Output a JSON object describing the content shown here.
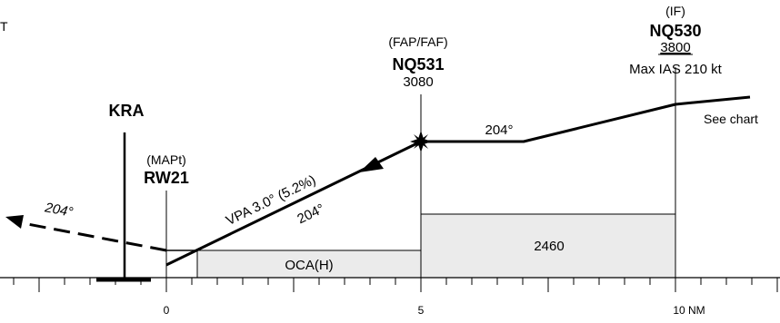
{
  "corner_text": "T",
  "kra": {
    "name": "KRA"
  },
  "rw21": {
    "role": "(MAPt)",
    "name": "RW21"
  },
  "nq531": {
    "role": "(FAP/FAF)",
    "name": "NQ531",
    "altitude": "3080"
  },
  "nq530": {
    "role": "(IF)",
    "name": "NQ530",
    "altitude": "3800",
    "speed_limit": "Max IAS 210 kt"
  },
  "see_chart": "See chart",
  "segment_bearing": "204°",
  "final": {
    "vpa": "VPA 3.0° (5.2%)",
    "bearing": "204°"
  },
  "missed_approach": {
    "bearing": "204°"
  },
  "boxes": {
    "oca_label": "OCA(H)",
    "intermediate_value": "2460"
  },
  "axis": {
    "labels": [
      "0",
      "5",
      "10 NM"
    ]
  }
}
